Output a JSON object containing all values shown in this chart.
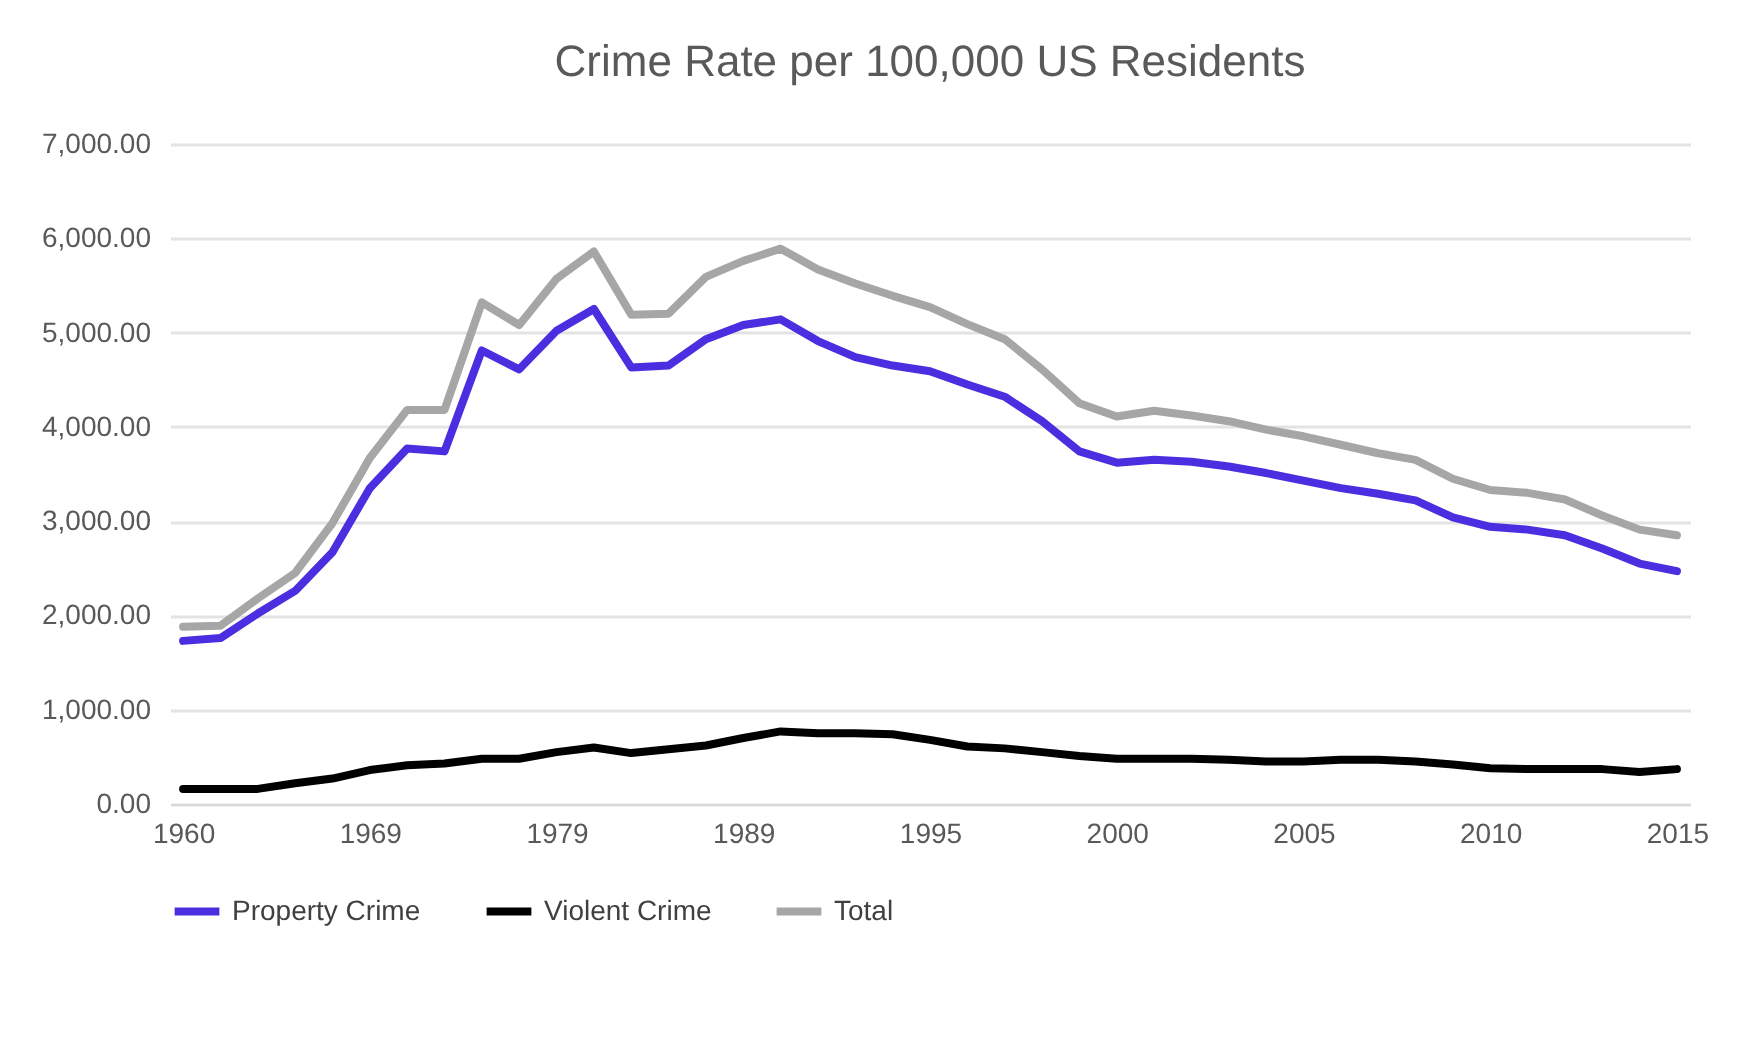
{
  "chart_data": {
    "type": "line",
    "title": "Crime Rate per 100,000 US Residents",
    "categories": [
      "1960",
      null,
      null,
      null,
      null,
      "1969",
      null,
      null,
      null,
      null,
      "1979",
      null,
      null,
      null,
      null,
      "1989",
      null,
      null,
      null,
      null,
      "1995",
      null,
      null,
      null,
      null,
      "2000",
      null,
      null,
      null,
      null,
      "2005",
      null,
      null,
      null,
      null,
      "2010",
      null,
      null,
      null,
      null,
      "2015"
    ],
    "series": [
      {
        "name": "Property Crime",
        "color": "#4b2ee0",
        "values": [
          1730,
          1760,
          2020,
          2260,
          2670,
          3350,
          3770,
          3740,
          4810,
          4610,
          5020,
          5250,
          4630,
          4650,
          4930,
          5080,
          5140,
          4910,
          4740,
          4650,
          4590,
          4450,
          4320,
          4060,
          3740,
          3620,
          3650,
          3630,
          3580,
          3510,
          3430,
          3350,
          3290,
          3220,
          3040,
          2940,
          2910,
          2850,
          2710,
          2550,
          2470
        ]
      },
      {
        "name": "Violent Crime",
        "color": "#000000",
        "values": [
          160,
          160,
          160,
          220,
          270,
          360,
          410,
          430,
          480,
          480,
          550,
          600,
          540,
          580,
          620,
          700,
          770,
          750,
          750,
          740,
          680,
          610,
          590,
          550,
          510,
          480,
          480,
          480,
          470,
          450,
          450,
          470,
          470,
          450,
          420,
          380,
          370,
          370,
          370,
          340,
          370
        ]
      },
      {
        "name": "Total",
        "color": "#a6a6a6",
        "values": [
          1880,
          1890,
          2180,
          2450,
          2980,
          3670,
          4180,
          4180,
          5320,
          5080,
          5570,
          5860,
          5190,
          5200,
          5590,
          5760,
          5890,
          5670,
          5520,
          5390,
          5270,
          5090,
          4930,
          4610,
          4250,
          4110,
          4170,
          4120,
          4060,
          3970,
          3900,
          3810,
          3720,
          3650,
          3450,
          3330,
          3300,
          3230,
          3060,
          2910,
          2850
        ]
      }
    ],
    "ylim": [
      0,
      7000
    ],
    "yticks": [
      {
        "value": 0,
        "label": "0.00"
      },
      {
        "value": 1000,
        "label": "1,000.00"
      },
      {
        "value": 2000,
        "label": "2,000.00"
      },
      {
        "value": 3000,
        "label": "3,000.00"
      },
      {
        "value": 4000,
        "label": "4,000.00"
      },
      {
        "value": 5000,
        "label": "5,000.00"
      },
      {
        "value": 6000,
        "label": "6,000.00"
      },
      {
        "value": 7000,
        "label": "7,000.00"
      }
    ],
    "grid": "y",
    "legend": "bottom",
    "marker": "none",
    "line_style": "solid"
  }
}
